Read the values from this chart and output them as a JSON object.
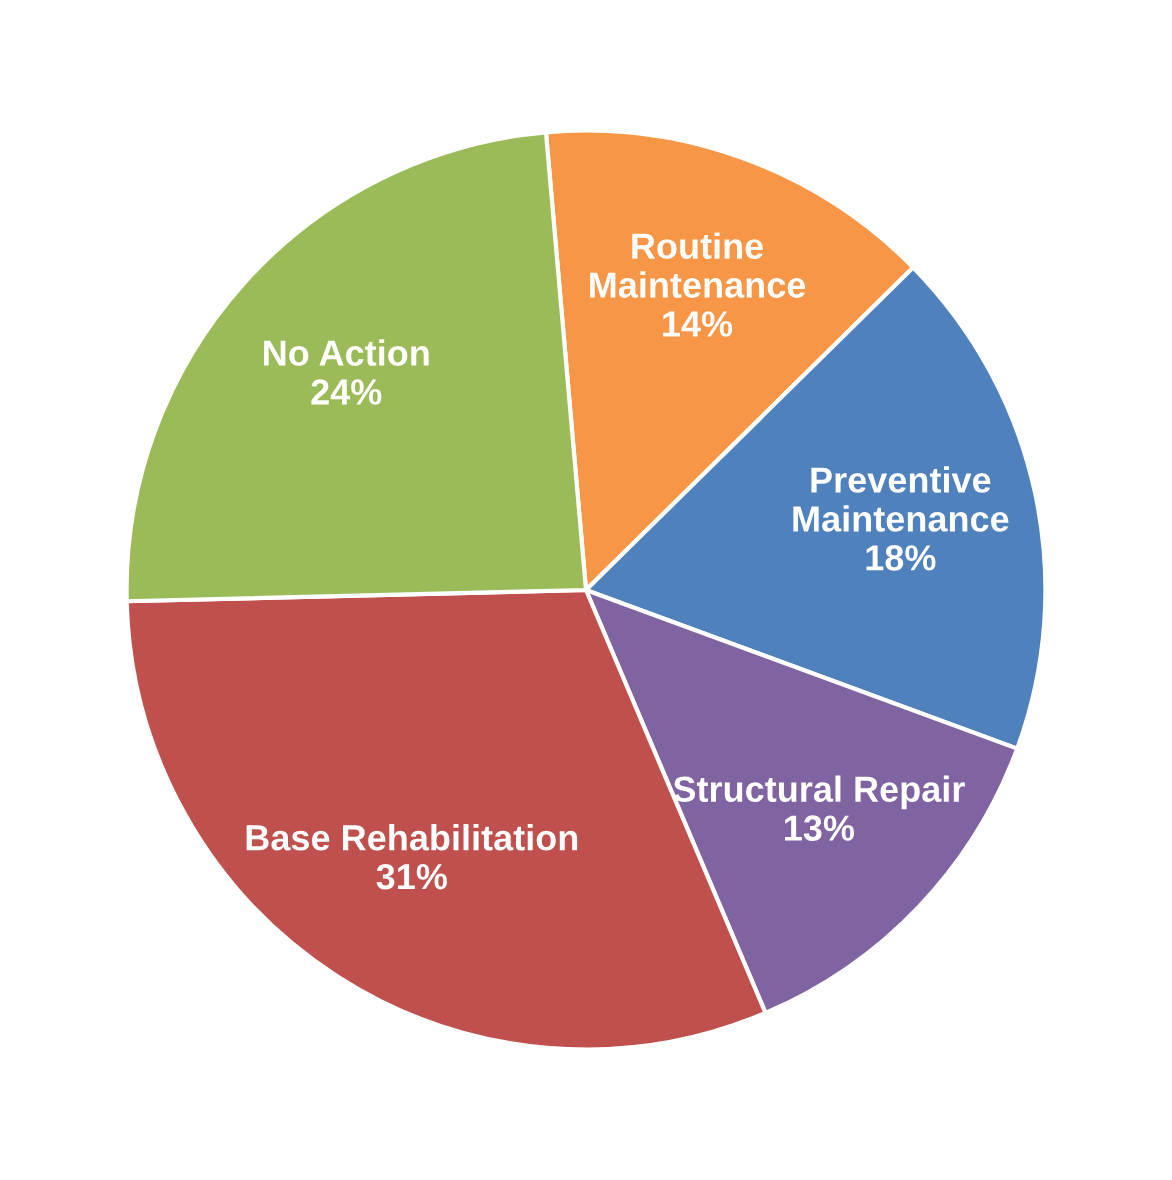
{
  "chart_data": {
    "type": "pie",
    "categories": [
      "Routine\nMaintenance",
      "Preventive\nMaintenance",
      "Structural Repair",
      "Base Rehabilitation",
      "No Action"
    ],
    "values": [
      14,
      18,
      13,
      31,
      24
    ],
    "value_labels": [
      "14%",
      "18%",
      "13%",
      "31%",
      "24%"
    ],
    "colors": [
      "#f79646",
      "#4f81bd",
      "#8064a2",
      "#c0504d",
      "#9bbb59"
    ],
    "legend": false
  }
}
